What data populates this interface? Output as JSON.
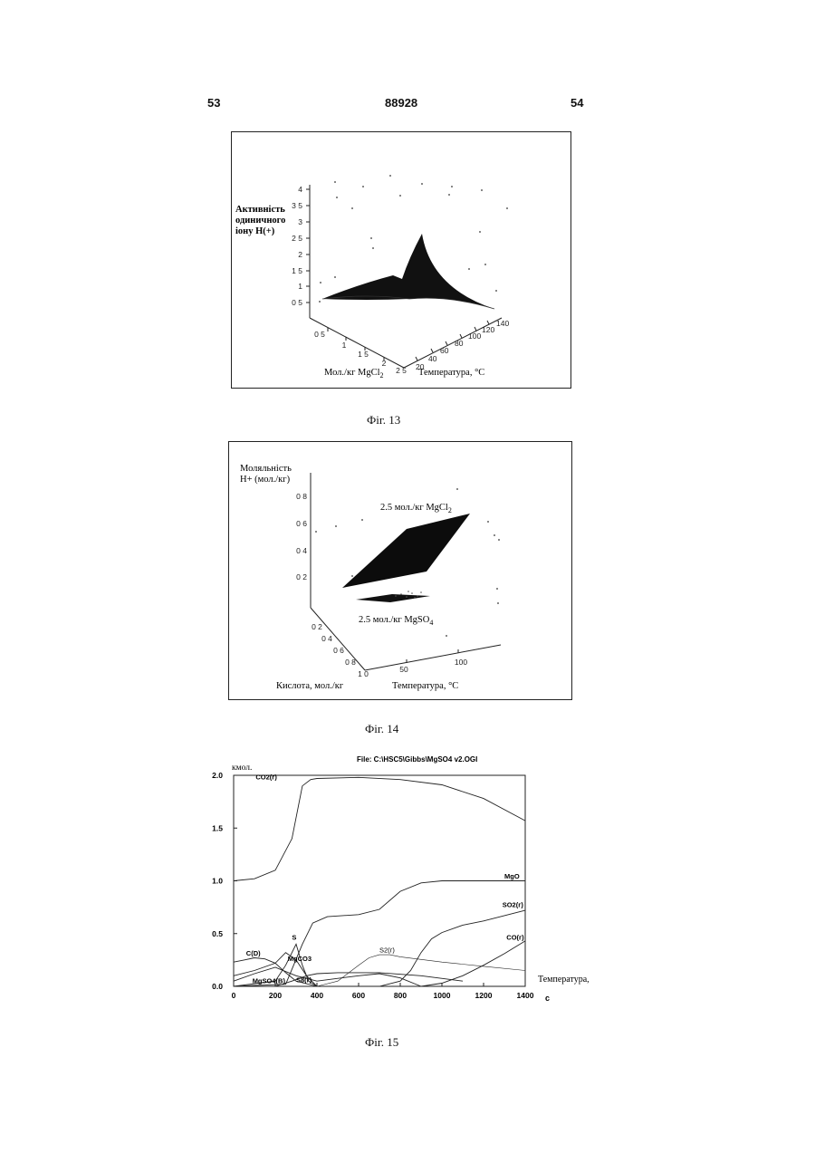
{
  "header": {
    "left": "53",
    "center": "88928",
    "right": "54"
  },
  "fig13": {
    "caption": "Фіг. 13",
    "zlabel": [
      "Активність",
      "одиничного",
      "іону H(+)"
    ],
    "zticks": [
      "4",
      "3 5",
      "3",
      "2 5",
      "2",
      "1 5",
      "1",
      "0 5"
    ],
    "xlabel_main": "Мол./кг MgCl",
    "xlabel_sub": "2",
    "xticks": [
      "0 5",
      "1",
      "1 5",
      "2",
      "2 5"
    ],
    "ylabel": "Температура, °C",
    "yticks": [
      "20",
      "40",
      "60",
      "80",
      "100",
      "120",
      "140"
    ]
  },
  "fig14": {
    "caption": "Фіг. 14",
    "zlabel": [
      "Моляльність",
      "H+ (мол./кг)"
    ],
    "zticks": [
      "0 8",
      "0 6",
      "0 4",
      "0 2"
    ],
    "upper_label_main": "2.5 мол./кг MgCl",
    "upper_label_sub": "2",
    "lower_label_main": "2.5 мол./кг MgSO",
    "lower_label_sub": "4",
    "xticks": [
      "0 2",
      "0 4",
      "0 6",
      "0 8",
      "1 0"
    ],
    "xlabel": "Кислота, мол./кг",
    "yticks": [
      "50",
      "100"
    ],
    "ylabel": "Температура, °C"
  },
  "fig15": {
    "caption": "Фіг. 15",
    "file_label": "File: C:\\HSC5\\Gibbs\\MgSO4 v2.OGI",
    "ylabel": "кмол.",
    "xlabel": "Температура,",
    "xunit": "с",
    "chart_data": {
      "type": "line",
      "title": "File: C:\\HSC5\\Gibbs\\MgSO4 v2.OGI",
      "xlabel": "Температура, с",
      "ylabel": "кмол.",
      "xlim": [
        0,
        1400
      ],
      "ylim": [
        0,
        2.0
      ],
      "xticks": [
        "0",
        "200",
        "400",
        "600",
        "800",
        "1000",
        "1200",
        "1400"
      ],
      "yticks": [
        "0.0",
        "0.5",
        "1.0",
        "1.5",
        "2.0"
      ],
      "series": [
        {
          "name": "CO2(г)",
          "x": [
            0,
            100,
            200,
            280,
            330,
            370,
            400,
            600,
            800,
            1000,
            1200,
            1400
          ],
          "y": [
            1.0,
            1.02,
            1.1,
            1.4,
            1.9,
            1.96,
            1.97,
            1.98,
            1.96,
            1.91,
            1.78,
            1.57
          ]
        },
        {
          "name": "MgO",
          "x": [
            0,
            250,
            330,
            380,
            450,
            600,
            700,
            800,
            900,
            1000,
            1100,
            1400
          ],
          "y": [
            0.0,
            0.02,
            0.4,
            0.6,
            0.66,
            0.68,
            0.73,
            0.9,
            0.98,
            1.0,
            1.0,
            1.0
          ]
        },
        {
          "name": "SO2(г)",
          "x": [
            0,
            700,
            800,
            850,
            900,
            950,
            1000,
            1100,
            1200,
            1300,
            1400
          ],
          "y": [
            0.0,
            0.0,
            0.05,
            0.15,
            0.32,
            0.45,
            0.51,
            0.58,
            0.62,
            0.67,
            0.72
          ]
        },
        {
          "name": "CO(г)",
          "x": [
            0,
            800,
            900,
            1000,
            1100,
            1200,
            1300,
            1400
          ],
          "y": [
            0.0,
            0.0,
            0.0,
            0.03,
            0.1,
            0.2,
            0.31,
            0.43
          ]
        },
        {
          "name": "S2(г)",
          "x": [
            400,
            500,
            600,
            650,
            700,
            750,
            800,
            1000,
            1200,
            1400
          ],
          "y": [
            0.0,
            0.05,
            0.2,
            0.27,
            0.3,
            0.3,
            0.28,
            0.23,
            0.19,
            0.15
          ]
        },
        {
          "name": "C(D)",
          "x": [
            0,
            50,
            100,
            150,
            200,
            250,
            300,
            400
          ],
          "y": [
            0.23,
            0.25,
            0.27,
            0.26,
            0.22,
            0.13,
            0.05,
            0.0
          ]
        },
        {
          "name": "S",
          "x": [
            0,
            200,
            250,
            300,
            330,
            360,
            400
          ],
          "y": [
            0.0,
            0.05,
            0.2,
            0.4,
            0.2,
            0.05,
            0.0
          ]
        },
        {
          "name": "MgCO3",
          "x": [
            0,
            100,
            200,
            250,
            300,
            350,
            400
          ],
          "y": [
            0.1,
            0.15,
            0.22,
            0.32,
            0.25,
            0.1,
            0.0
          ]
        },
        {
          "name": "MgSO4(B)",
          "x": [
            0,
            100,
            200,
            300,
            400,
            600,
            700,
            800,
            900
          ],
          "y": [
            0.05,
            0.12,
            0.18,
            0.1,
            0.05,
            0.1,
            0.12,
            0.08,
            0.0
          ]
        },
        {
          "name": "S8(г)",
          "x": [
            200,
            280,
            350,
            400,
            500,
            600,
            700,
            900,
            1100
          ],
          "y": [
            0.0,
            0.05,
            0.1,
            0.12,
            0.13,
            0.13,
            0.13,
            0.1,
            0.05
          ]
        }
      ]
    }
  }
}
